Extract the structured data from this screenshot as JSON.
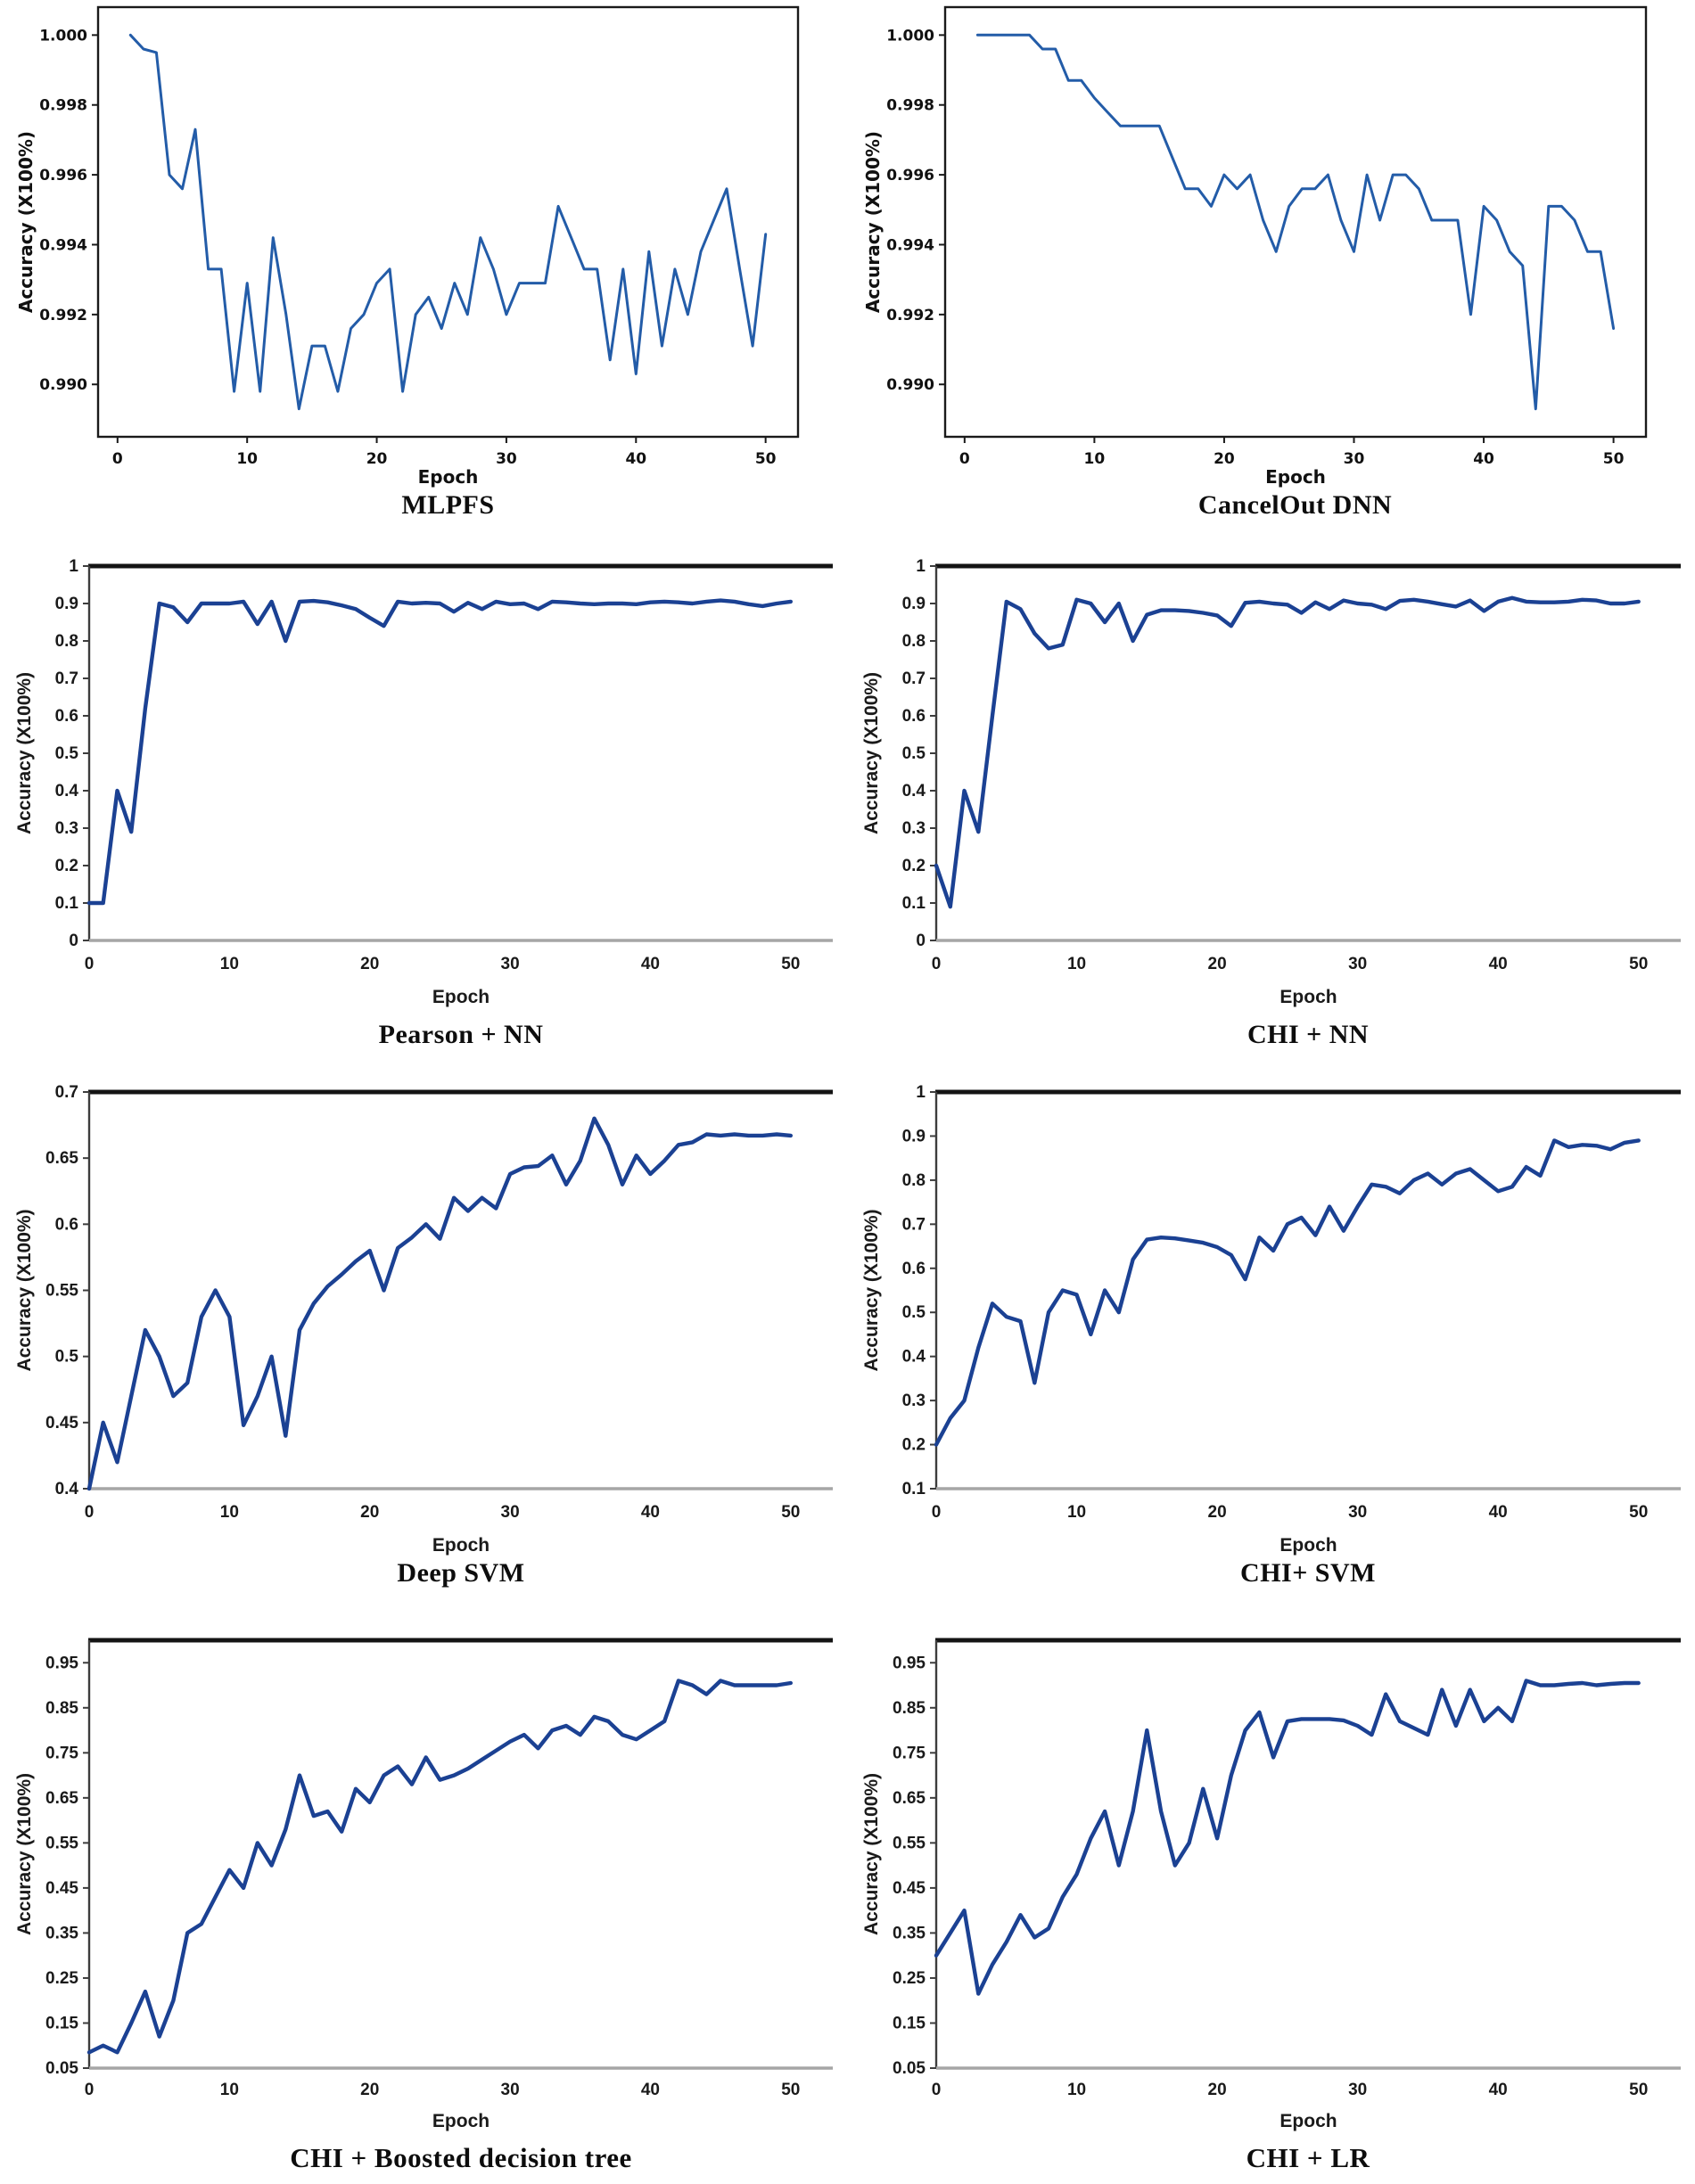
{
  "page": {
    "background": "#ffffff",
    "description": "Training accuracy vs epoch curves for eight feature-selection models"
  },
  "chart_data": [
    {
      "type": "line",
      "title": "MLPFS",
      "xlabel": "Epoch",
      "ylabel": "Accuracy (X100%)",
      "style": "matplotlib-box",
      "line_color": "#235ca8",
      "grid": false,
      "legend": false,
      "x_start": 1,
      "xlim": [
        -1.5,
        52.5
      ],
      "ylim": [
        0.9885,
        1.0008
      ],
      "xticks": [
        0,
        10,
        20,
        30,
        40,
        50
      ],
      "xtick_labels": [
        "0",
        "10",
        "20",
        "30",
        "40",
        "50"
      ],
      "yticks": [
        1.0,
        0.998,
        0.996,
        0.994,
        0.992,
        0.99
      ],
      "ytick_labels": [
        "1.000",
        "0.998",
        "0.996",
        "0.994",
        "0.992",
        "0.990"
      ],
      "values": [
        1.0,
        0.9996,
        0.9995,
        0.996,
        0.9956,
        0.9973,
        0.9933,
        0.9933,
        0.9898,
        0.9929,
        0.9898,
        0.9942,
        0.992,
        0.9893,
        0.9911,
        0.9911,
        0.9898,
        0.9916,
        0.992,
        0.9929,
        0.9933,
        0.9898,
        0.992,
        0.9925,
        0.9916,
        0.9929,
        0.992,
        0.9942,
        0.9933,
        0.992,
        0.9929,
        0.9929,
        0.9929,
        0.9951,
        0.9942,
        0.9933,
        0.9933,
        0.9907,
        0.9933,
        0.9903,
        0.9938,
        0.9911,
        0.9933,
        0.992,
        0.9938,
        0.9947,
        0.9956,
        0.9933,
        0.9911,
        0.9943
      ]
    },
    {
      "type": "line",
      "title": "CancelOut DNN",
      "xlabel": "Epoch",
      "ylabel": "Accuracy (X100%)",
      "style": "matplotlib-box",
      "line_color": "#235ca8",
      "grid": false,
      "legend": false,
      "x_start": 1,
      "xlim": [
        -1.5,
        52.5
      ],
      "ylim": [
        0.9885,
        1.0008
      ],
      "xticks": [
        0,
        10,
        20,
        30,
        40,
        50
      ],
      "xtick_labels": [
        "0",
        "10",
        "20",
        "30",
        "40",
        "50"
      ],
      "yticks": [
        1.0,
        0.998,
        0.996,
        0.994,
        0.992,
        0.99
      ],
      "ytick_labels": [
        "1.000",
        "0.998",
        "0.996",
        "0.994",
        "0.992",
        "0.990"
      ],
      "values": [
        1.0,
        1.0,
        1.0,
        1.0,
        1.0,
        0.9996,
        0.9996,
        0.9987,
        0.9987,
        0.9982,
        0.9978,
        0.9974,
        0.9974,
        0.9974,
        0.9974,
        0.9965,
        0.9956,
        0.9956,
        0.9951,
        0.996,
        0.9956,
        0.996,
        0.9947,
        0.9938,
        0.9951,
        0.9956,
        0.9956,
        0.996,
        0.9947,
        0.9938,
        0.996,
        0.9947,
        0.996,
        0.996,
        0.9956,
        0.9947,
        0.9947,
        0.9947,
        0.992,
        0.9951,
        0.9947,
        0.9938,
        0.9934,
        0.9893,
        0.9951,
        0.9951,
        0.9947,
        0.9938,
        0.9938,
        0.9916
      ]
    },
    {
      "type": "line",
      "title": "Pearson + NN",
      "xlabel": "Epoch",
      "ylabel": "Accuracy (X100%)",
      "style": "excel",
      "line_color": "#1b4193",
      "grid": false,
      "legend": false,
      "x_start": 0,
      "xlim": [
        0,
        53
      ],
      "ylim": [
        0,
        1
      ],
      "xticks": [
        0,
        10,
        20,
        30,
        40,
        50
      ],
      "xtick_labels": [
        "0",
        "10",
        "20",
        "30",
        "40",
        "50"
      ],
      "yticks": [
        1,
        0.9,
        0.8,
        0.7,
        0.6,
        0.5,
        0.4,
        0.3,
        0.2,
        0.1,
        0
      ],
      "ytick_labels": [
        "1",
        "0.9",
        "0.8",
        "0.7",
        "0.6",
        "0.5",
        "0.4",
        "0.3",
        "0.2",
        "0.1",
        "0"
      ],
      "values": [
        0.1,
        0.1,
        0.4,
        0.29,
        0.62,
        0.9,
        0.89,
        0.85,
        0.9,
        0.9,
        0.9,
        0.905,
        0.845,
        0.905,
        0.8,
        0.905,
        0.907,
        0.903,
        0.895,
        0.885,
        0.862,
        0.84,
        0.905,
        0.9,
        0.902,
        0.9,
        0.878,
        0.902,
        0.885,
        0.905,
        0.898,
        0.9,
        0.885,
        0.905,
        0.903,
        0.9,
        0.898,
        0.9,
        0.9,
        0.898,
        0.903,
        0.905,
        0.903,
        0.9,
        0.905,
        0.908,
        0.905,
        0.898,
        0.893,
        0.9,
        0.905
      ]
    },
    {
      "type": "line",
      "title": "CHI + NN",
      "xlabel": "Epoch",
      "ylabel": "Accuracy (X100%)",
      "style": "excel",
      "line_color": "#1b4193",
      "grid": false,
      "legend": false,
      "x_start": 0,
      "xlim": [
        0,
        53
      ],
      "ylim": [
        0,
        1
      ],
      "xticks": [
        0,
        10,
        20,
        30,
        40,
        50
      ],
      "xtick_labels": [
        "0",
        "10",
        "20",
        "30",
        "40",
        "50"
      ],
      "yticks": [
        1,
        0.9,
        0.8,
        0.7,
        0.6,
        0.5,
        0.4,
        0.3,
        0.2,
        0.1,
        0
      ],
      "ytick_labels": [
        "1",
        "0.9",
        "0.8",
        "0.7",
        "0.6",
        "0.5",
        "0.4",
        "0.3",
        "0.2",
        "0.1",
        "0"
      ],
      "values": [
        0.2,
        0.09,
        0.4,
        0.29,
        0.6,
        0.905,
        0.885,
        0.82,
        0.78,
        0.79,
        0.91,
        0.9,
        0.85,
        0.9,
        0.8,
        0.87,
        0.882,
        0.882,
        0.88,
        0.875,
        0.868,
        0.84,
        0.902,
        0.905,
        0.9,
        0.897,
        0.875,
        0.903,
        0.885,
        0.908,
        0.9,
        0.897,
        0.885,
        0.907,
        0.91,
        0.905,
        0.898,
        0.892,
        0.908,
        0.88,
        0.905,
        0.915,
        0.905,
        0.903,
        0.903,
        0.905,
        0.91,
        0.908,
        0.9,
        0.9,
        0.905
      ]
    },
    {
      "type": "line",
      "title": "Deep SVM",
      "xlabel": "Epoch",
      "ylabel": "Accuracy (X100%)",
      "style": "excel",
      "line_color": "#1b4193",
      "grid": false,
      "legend": false,
      "x_start": 0,
      "xlim": [
        0,
        53
      ],
      "ylim": [
        0.4,
        0.7
      ],
      "xticks": [
        0,
        10,
        20,
        30,
        40,
        50
      ],
      "xtick_labels": [
        "0",
        "10",
        "20",
        "30",
        "40",
        "50"
      ],
      "yticks": [
        0.7,
        0.65,
        0.6,
        0.55,
        0.5,
        0.45,
        0.4
      ],
      "ytick_labels": [
        "0.7",
        "0.65",
        "0.6",
        "0.55",
        "0.5",
        "0.45",
        "0.4"
      ],
      "values": [
        0.4,
        0.45,
        0.42,
        0.47,
        0.52,
        0.5,
        0.47,
        0.48,
        0.53,
        0.55,
        0.53,
        0.448,
        0.47,
        0.5,
        0.44,
        0.52,
        0.54,
        0.553,
        0.562,
        0.572,
        0.58,
        0.55,
        0.582,
        0.59,
        0.6,
        0.589,
        0.62,
        0.61,
        0.62,
        0.612,
        0.638,
        0.643,
        0.644,
        0.652,
        0.63,
        0.648,
        0.68,
        0.66,
        0.63,
        0.652,
        0.638,
        0.648,
        0.66,
        0.662,
        0.668,
        0.667,
        0.668,
        0.667,
        0.667,
        0.668,
        0.667
      ]
    },
    {
      "type": "line",
      "title": "CHI+ SVM",
      "xlabel": "Epoch",
      "ylabel": "Accuracy (X100%)",
      "style": "excel",
      "line_color": "#1b4193",
      "grid": false,
      "legend": false,
      "x_start": 0,
      "xlim": [
        0,
        53
      ],
      "ylim": [
        0.1,
        1
      ],
      "xticks": [
        0,
        10,
        20,
        30,
        40,
        50
      ],
      "xtick_labels": [
        "0",
        "10",
        "20",
        "30",
        "40",
        "50"
      ],
      "yticks": [
        1,
        0.9,
        0.8,
        0.7,
        0.6,
        0.5,
        0.4,
        0.3,
        0.2,
        0.1
      ],
      "ytick_labels": [
        "1",
        "0.9",
        "0.8",
        "0.7",
        "0.6",
        "0.5",
        "0.4",
        "0.3",
        "0.2",
        "0.1"
      ],
      "values": [
        0.2,
        0.26,
        0.3,
        0.42,
        0.52,
        0.49,
        0.48,
        0.34,
        0.5,
        0.55,
        0.54,
        0.45,
        0.55,
        0.5,
        0.62,
        0.665,
        0.67,
        0.668,
        0.663,
        0.658,
        0.648,
        0.63,
        0.575,
        0.67,
        0.64,
        0.7,
        0.715,
        0.675,
        0.74,
        0.685,
        0.74,
        0.79,
        0.785,
        0.77,
        0.8,
        0.815,
        0.79,
        0.815,
        0.825,
        0.8,
        0.775,
        0.785,
        0.83,
        0.81,
        0.89,
        0.875,
        0.88,
        0.878,
        0.87,
        0.885,
        0.89
      ]
    },
    {
      "type": "line",
      "title": "CHI + Boosted decision tree",
      "xlabel": "Epoch",
      "ylabel": "Accuracy (X100%)",
      "style": "excel",
      "line_color": "#1b4193",
      "grid": false,
      "legend": false,
      "x_start": 0,
      "xlim": [
        0,
        53
      ],
      "ylim": [
        0.05,
        1.0
      ],
      "xticks": [
        0,
        10,
        20,
        30,
        40,
        50
      ],
      "xtick_labels": [
        "0",
        "10",
        "20",
        "30",
        "40",
        "50"
      ],
      "yticks": [
        0.95,
        0.85,
        0.75,
        0.65,
        0.55,
        0.45,
        0.35,
        0.25,
        0.15,
        0.05
      ],
      "ytick_labels": [
        "0.95",
        "0.85",
        "0.75",
        "0.65",
        "0.55",
        "0.45",
        "0.35",
        "0.25",
        "0.15",
        "0.05"
      ],
      "values": [
        0.085,
        0.1,
        0.085,
        0.15,
        0.22,
        0.12,
        0.2,
        0.35,
        0.37,
        0.43,
        0.49,
        0.45,
        0.55,
        0.5,
        0.58,
        0.7,
        0.61,
        0.62,
        0.575,
        0.67,
        0.64,
        0.7,
        0.72,
        0.68,
        0.74,
        0.69,
        0.7,
        0.715,
        0.735,
        0.755,
        0.775,
        0.79,
        0.76,
        0.8,
        0.81,
        0.79,
        0.83,
        0.82,
        0.79,
        0.78,
        0.8,
        0.82,
        0.91,
        0.9,
        0.88,
        0.91,
        0.9,
        0.9,
        0.9,
        0.9,
        0.905
      ]
    },
    {
      "type": "line",
      "title": "CHI + LR",
      "xlabel": "Epoch",
      "ylabel": "Accuracy (X100%)",
      "style": "excel",
      "line_color": "#1b4193",
      "grid": false,
      "legend": false,
      "x_start": 0,
      "xlim": [
        0,
        53
      ],
      "ylim": [
        0.05,
        1.0
      ],
      "xticks": [
        0,
        10,
        20,
        30,
        40,
        50
      ],
      "xtick_labels": [
        "0",
        "10",
        "20",
        "30",
        "40",
        "50"
      ],
      "yticks": [
        0.95,
        0.85,
        0.75,
        0.65,
        0.55,
        0.45,
        0.35,
        0.25,
        0.15,
        0.05
      ],
      "ytick_labels": [
        "0.95",
        "0.85",
        "0.75",
        "0.65",
        "0.55",
        "0.45",
        "0.35",
        "0.25",
        "0.15",
        "0.05"
      ],
      "values": [
        0.3,
        0.35,
        0.4,
        0.215,
        0.28,
        0.33,
        0.39,
        0.34,
        0.36,
        0.43,
        0.48,
        0.56,
        0.62,
        0.5,
        0.62,
        0.8,
        0.62,
        0.5,
        0.55,
        0.67,
        0.56,
        0.7,
        0.8,
        0.84,
        0.74,
        0.82,
        0.825,
        0.825,
        0.825,
        0.822,
        0.81,
        0.79,
        0.88,
        0.82,
        0.805,
        0.79,
        0.89,
        0.81,
        0.89,
        0.82,
        0.85,
        0.82,
        0.91,
        0.9,
        0.9,
        0.903,
        0.905,
        0.9,
        0.903,
        0.905,
        0.905
      ]
    }
  ]
}
